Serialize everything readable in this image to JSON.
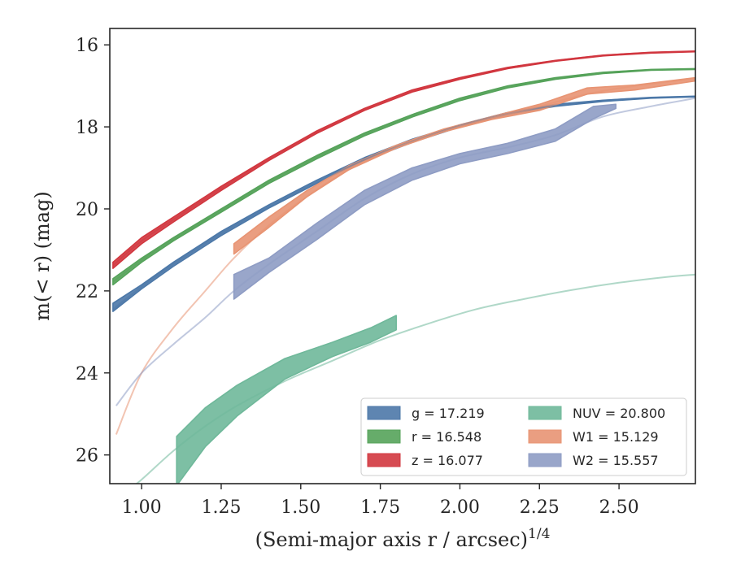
{
  "chart_data": {
    "type": "line",
    "xlabel": "(Semi-major axis r / arcsec)^1/4",
    "ylabel": "m(< r) (mag)",
    "xlim": [
      0.9,
      2.74
    ],
    "ylim": [
      26.7,
      15.6
    ],
    "y_inverted": true,
    "x_ticks": [
      "1.00",
      "1.25",
      "1.50",
      "1.75",
      "2.00",
      "2.25",
      "2.50"
    ],
    "x_tick_values": [
      1.0,
      1.25,
      1.5,
      1.75,
      2.0,
      2.25,
      2.5
    ],
    "y_ticks": [
      "16",
      "18",
      "20",
      "22",
      "24",
      "26"
    ],
    "y_tick_values": [
      16,
      18,
      20,
      22,
      24,
      26
    ],
    "grid": false,
    "legend_position": "lower-right",
    "legend": [
      {
        "label": "g = 17.219",
        "color": "#4c78a8"
      },
      {
        "label": "r = 16.548",
        "color": "#55a35a"
      },
      {
        "label": "z = 16.077",
        "color": "#d1373f"
      },
      {
        "label": "NUV = 20.800",
        "color": "#6fb89a"
      },
      {
        "label": "W1 = 15.129",
        "color": "#e89473"
      },
      {
        "label": "W2 = 15.557",
        "color": "#8e9cc4"
      }
    ],
    "series": [
      {
        "name": "g = 17.219",
        "band": "g",
        "color": "#4c78a8",
        "band_x": [
          0.91,
          1.0,
          1.1,
          1.25,
          1.4,
          1.55,
          1.7,
          1.85,
          2.0,
          2.15,
          2.3,
          2.45,
          2.6,
          2.74
        ],
        "band_upper": [
          22.3,
          21.85,
          21.3,
          20.55,
          19.9,
          19.3,
          18.75,
          18.3,
          17.95,
          17.65,
          17.45,
          17.35,
          17.28,
          17.25
        ],
        "band_lower": [
          22.5,
          21.95,
          21.4,
          20.65,
          19.98,
          19.38,
          18.82,
          18.38,
          18.0,
          17.7,
          17.5,
          17.38,
          17.3,
          17.27
        ],
        "model_x": [
          0.91,
          1.0,
          1.1,
          1.25,
          1.4,
          1.55,
          1.7,
          1.85,
          2.0,
          2.15,
          2.3,
          2.45,
          2.6,
          2.74
        ],
        "model_y": [
          22.45,
          21.9,
          21.35,
          20.6,
          19.95,
          19.35,
          18.8,
          18.35,
          17.97,
          17.68,
          17.48,
          17.36,
          17.29,
          17.26
        ]
      },
      {
        "name": "r = 16.548",
        "band": "r",
        "color": "#55a35a",
        "band_x": [
          0.91,
          1.0,
          1.1,
          1.25,
          1.4,
          1.55,
          1.7,
          1.85,
          2.0,
          2.15,
          2.3,
          2.45,
          2.6,
          2.74
        ],
        "band_upper": [
          21.7,
          21.2,
          20.7,
          20.0,
          19.3,
          18.7,
          18.15,
          17.7,
          17.3,
          17.0,
          16.8,
          16.67,
          16.6,
          16.58
        ],
        "band_lower": [
          21.85,
          21.3,
          20.78,
          20.08,
          19.38,
          18.78,
          18.22,
          17.76,
          17.36,
          17.05,
          16.84,
          16.7,
          16.62,
          16.6
        ],
        "model_x": [
          0.91,
          1.0,
          1.1,
          1.25,
          1.4,
          1.55,
          1.7,
          1.85,
          2.0,
          2.15,
          2.3,
          2.45,
          2.6,
          2.74
        ],
        "model_y": [
          21.78,
          21.25,
          20.74,
          20.04,
          19.34,
          18.74,
          18.18,
          17.73,
          17.33,
          17.02,
          16.82,
          16.68,
          16.61,
          16.59
        ]
      },
      {
        "name": "z = 16.077",
        "band": "z",
        "color": "#d1373f",
        "band_x": [
          0.91,
          1.0,
          1.1,
          1.25,
          1.4,
          1.55,
          1.7,
          1.85,
          2.0,
          2.15,
          2.3,
          2.45,
          2.6,
          2.74
        ],
        "band_upper": [
          21.3,
          20.7,
          20.2,
          19.45,
          18.75,
          18.1,
          17.55,
          17.1,
          16.8,
          16.55,
          16.38,
          16.25,
          16.18,
          16.15
        ],
        "band_lower": [
          21.45,
          20.85,
          20.32,
          19.55,
          18.82,
          18.16,
          17.6,
          17.15,
          16.84,
          16.58,
          16.4,
          16.27,
          16.2,
          16.17
        ],
        "model_x": [
          0.91,
          1.0,
          1.1,
          1.25,
          1.4,
          1.55,
          1.7,
          1.85,
          2.0,
          2.15,
          2.3,
          2.45,
          2.6,
          2.74
        ],
        "model_y": [
          21.38,
          20.78,
          20.26,
          19.5,
          18.78,
          18.13,
          17.57,
          17.12,
          16.82,
          16.56,
          16.39,
          16.26,
          16.19,
          16.16
        ]
      },
      {
        "name": "NUV = 20.800",
        "band": "NUV",
        "color": "#6fb89a",
        "band_x": [
          1.11,
          1.2,
          1.3,
          1.45,
          1.6,
          1.72,
          1.8
        ],
        "band_upper": [
          25.55,
          24.85,
          24.3,
          23.65,
          23.25,
          22.9,
          22.6
        ],
        "band_lower": [
          26.75,
          25.8,
          25.05,
          24.15,
          23.6,
          23.25,
          22.95
        ],
        "model_x": [
          0.95,
          1.0,
          1.1,
          1.2,
          1.3,
          1.45,
          1.6,
          1.75,
          1.9,
          2.05,
          2.2,
          2.35,
          2.5,
          2.65,
          2.74
        ],
        "model_y": [
          26.9,
          26.6,
          25.9,
          25.3,
          24.8,
          24.2,
          23.7,
          23.2,
          22.8,
          22.45,
          22.2,
          21.98,
          21.8,
          21.66,
          21.6
        ]
      },
      {
        "name": "W1 = 15.129",
        "band": "W1",
        "color": "#e89473",
        "band_x": [
          1.29,
          1.4,
          1.52,
          1.65,
          1.8,
          1.95,
          2.1,
          2.25,
          2.4,
          2.55,
          2.74
        ],
        "band_upper": [
          20.85,
          20.2,
          19.55,
          18.95,
          18.45,
          18.05,
          17.75,
          17.45,
          17.05,
          16.98,
          16.8
        ],
        "band_lower": [
          21.1,
          20.45,
          19.7,
          19.05,
          18.52,
          18.12,
          17.82,
          17.6,
          17.2,
          17.1,
          16.88
        ],
        "model_x": [
          0.92,
          1.0,
          1.1,
          1.2,
          1.29,
          1.4,
          1.52,
          1.65,
          1.8,
          1.95,
          2.1,
          2.25,
          2.4,
          2.55,
          2.74
        ],
        "model_y": [
          25.5,
          24.0,
          22.9,
          22.0,
          21.2,
          20.4,
          19.7,
          19.05,
          18.5,
          18.1,
          17.78,
          17.5,
          17.2,
          17.0,
          16.82
        ]
      },
      {
        "name": "W2 = 15.557",
        "band": "W2",
        "color": "#8e9cc4",
        "band_x": [
          1.29,
          1.4,
          1.55,
          1.7,
          1.85,
          2.0,
          2.15,
          2.3,
          2.42,
          2.49
        ],
        "band_upper": [
          21.6,
          21.2,
          20.35,
          19.55,
          19.0,
          18.65,
          18.4,
          18.05,
          17.5,
          17.45
        ],
        "band_lower": [
          22.2,
          21.55,
          20.75,
          19.9,
          19.3,
          18.9,
          18.65,
          18.35,
          17.8,
          17.55
        ],
        "model_x": [
          0.92,
          1.0,
          1.1,
          1.2,
          1.29,
          1.4,
          1.55,
          1.7,
          1.85,
          2.0,
          2.15,
          2.3,
          2.45,
          2.6,
          2.74
        ],
        "model_y": [
          24.8,
          24.0,
          23.3,
          22.65,
          22.0,
          21.35,
          20.55,
          19.75,
          19.15,
          18.75,
          18.5,
          18.2,
          17.75,
          17.5,
          17.3
        ]
      }
    ]
  }
}
